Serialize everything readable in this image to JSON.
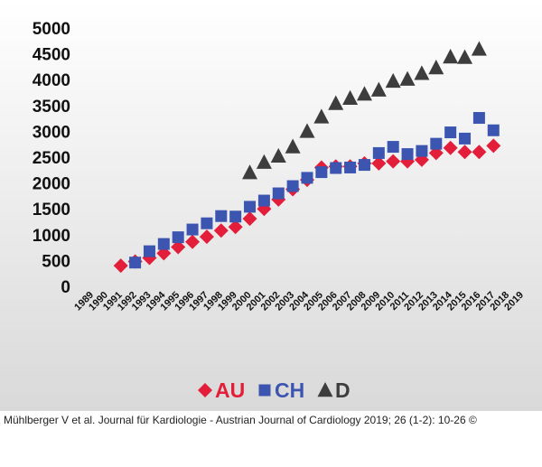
{
  "colors": {
    "background_top": "#ffffff",
    "background_bottom": "#d9d9d9",
    "AU": "#e21e3a",
    "CH": "#3b55b0",
    "D": "#3d3d3d"
  },
  "citation": "Mühlberger V et al. Journal für Kardiologie - Austrian Journal of Cardiology 2019; 26 (1-2): 10-26 ©",
  "chart_data": {
    "type": "scatter",
    "title": "",
    "xlabel": "",
    "ylabel": "",
    "xlim": [
      1989,
      2019
    ],
    "ylim": [
      0,
      5000
    ],
    "x_ticks": [
      "1989",
      "1990",
      "1991",
      "1992",
      "1993",
      "1994",
      "1995",
      "1996",
      "1997",
      "1998",
      "1999",
      "2000",
      "2001",
      "2002",
      "2003",
      "2004",
      "2005",
      "2006",
      "2007",
      "2008",
      "2009",
      "2010",
      "2011",
      "2012",
      "2013",
      "2014",
      "2015",
      "2016",
      "2017",
      "2018",
      "2019"
    ],
    "y_ticks": [
      "0",
      "500",
      "1000",
      "1500",
      "2000",
      "2500",
      "3000",
      "3500",
      "4000",
      "4500",
      "5000"
    ],
    "grid": false,
    "legend_position": "bottom-center",
    "series": [
      {
        "name": "AU",
        "marker": "diamond",
        "x": [
          1991,
          1992,
          1993,
          1994,
          1995,
          1996,
          1997,
          1998,
          1999,
          2000,
          2001,
          2002,
          2003,
          2004,
          2005,
          2006,
          2007,
          2008,
          2009,
          2010,
          2011,
          2012,
          2013,
          2014,
          2015,
          2016,
          2017
        ],
        "values": [
          400,
          480,
          550,
          640,
          760,
          860,
          960,
          1080,
          1150,
          1310,
          1500,
          1680,
          1880,
          2060,
          2300,
          2320,
          2320,
          2380,
          2380,
          2420,
          2420,
          2450,
          2580,
          2680,
          2600,
          2600,
          2720
        ]
      },
      {
        "name": "CH",
        "marker": "square",
        "x": [
          1992,
          1993,
          1994,
          1995,
          1996,
          1997,
          1998,
          1999,
          2000,
          2001,
          2002,
          2003,
          2004,
          2005,
          2006,
          2007,
          2008,
          2009,
          2010,
          2011,
          2012,
          2013,
          2014,
          2015,
          2016,
          2017
        ],
        "values": [
          460,
          680,
          820,
          950,
          1100,
          1220,
          1360,
          1350,
          1540,
          1660,
          1800,
          1940,
          2100,
          2210,
          2290,
          2300,
          2350,
          2580,
          2700,
          2560,
          2620,
          2760,
          2980,
          2860,
          3260,
          3020
        ]
      },
      {
        "name": "D",
        "marker": "triangle",
        "x": [
          2000,
          2001,
          2002,
          2003,
          2004,
          2005,
          2006,
          2007,
          2008,
          2009,
          2010,
          2011,
          2012,
          2013,
          2014,
          2015,
          2016
        ],
        "values": [
          2200,
          2400,
          2520,
          2700,
          3000,
          3280,
          3540,
          3640,
          3720,
          3800,
          3970,
          4010,
          4120,
          4230,
          4440,
          4430,
          4590
        ]
      }
    ]
  }
}
